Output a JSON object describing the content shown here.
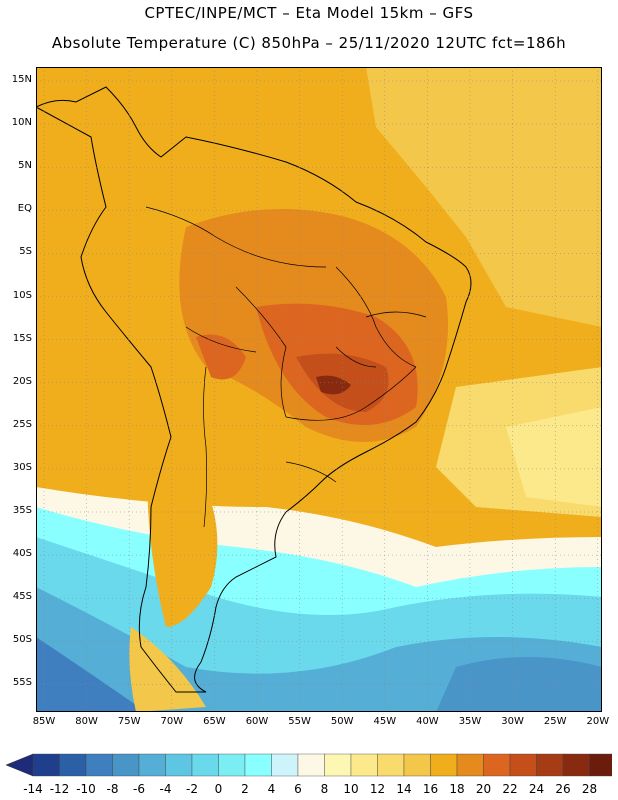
{
  "header": {
    "title_line1": "CPTEC/INPE/MCT –  Eta Model 15km – GFS",
    "title_line2": "Absolute Temperature (C) 850hPa – 25/11/2020 12UTC fct=186h"
  },
  "map": {
    "lat_labels": [
      "15N",
      "10N",
      "5N",
      "EQ",
      "5S",
      "10S",
      "15S",
      "20S",
      "25S",
      "30S",
      "35S",
      "40S",
      "45S",
      "50S",
      "55S"
    ],
    "lon_labels": [
      "85W",
      "80W",
      "75W",
      "70W",
      "65W",
      "60W",
      "55W",
      "50W",
      "45W",
      "40W",
      "35W",
      "30W",
      "25W",
      "20W"
    ],
    "grid": "dotted"
  },
  "colorbar": {
    "labels": [
      "-14",
      "-12",
      "-10",
      "-8",
      "-6",
      "-4",
      "-2",
      "0",
      "2",
      "4",
      "6",
      "8",
      "10",
      "12",
      "14",
      "16",
      "18",
      "20",
      "22",
      "24",
      "26",
      "28"
    ],
    "colors": [
      "#1f3f8c",
      "#2b5fa6",
      "#3f7fc0",
      "#4a95c8",
      "#55aed6",
      "#5ec6e2",
      "#6ad9ec",
      "#7beef4",
      "#8affff",
      "#cdf4fb",
      "#fdf8e6",
      "#fdf7b4",
      "#fbe98b",
      "#f8da6d",
      "#f3c749",
      "#f0ae1c",
      "#e58a1d",
      "#dc6620",
      "#c44f1a",
      "#a63c15",
      "#872a10",
      "#6b1c0c"
    ],
    "low_arrow": "#1e2b78",
    "high_arrow": "#6a0a24"
  }
}
